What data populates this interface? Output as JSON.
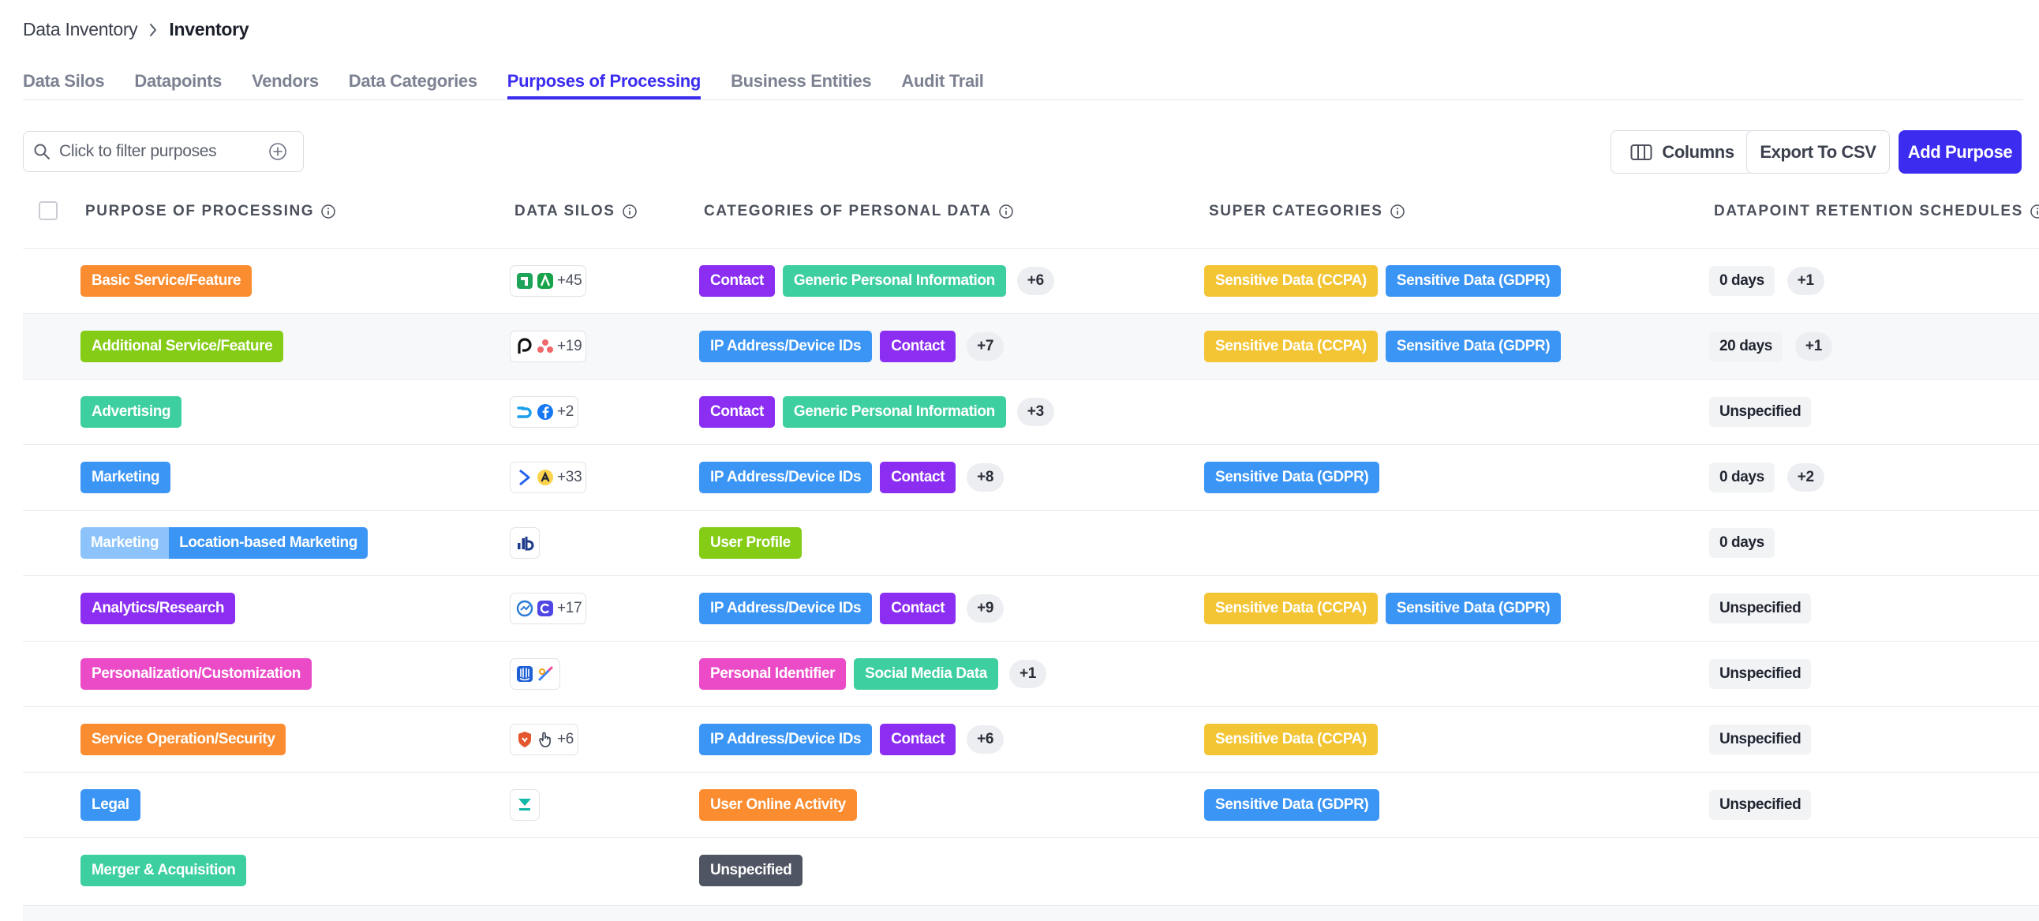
{
  "breadcrumb": {
    "parent": "Data Inventory",
    "current": "Inventory"
  },
  "tabs": [
    "Data Silos",
    "Datapoints",
    "Vendors",
    "Data Categories",
    "Purposes of Processing",
    "Business Entities",
    "Audit Trail"
  ],
  "active_tab": "Purposes of Processing",
  "filter": {
    "placeholder": "Click to filter purposes"
  },
  "toolbar": {
    "columns": "Columns",
    "export": "Export To CSV",
    "add": "Add Purpose"
  },
  "columns": {
    "purpose": "PURPOSE OF PROCESSING",
    "silos": "DATA SILOS",
    "categories": "CATEGORIES OF PERSONAL DATA",
    "super": "SUPER CATEGORIES",
    "retention": "DATAPOINT RETENTION SCHEDULES"
  },
  "colors": {
    "accent": "#3b2cf0",
    "orange": "#fb8c2f",
    "lime": "#84cc16",
    "teal": "#3ecfa0",
    "blue": "#3b95f5",
    "light_blue": "#8cc3fb",
    "purple": "#8b2ef2",
    "pink": "#ec4bc8",
    "yellow": "#f3c534",
    "gray": "#4f5562"
  },
  "rows": [
    {
      "purpose": [
        "Basic Service/Feature"
      ],
      "silo_icons": [
        "app-logo-green-square-icon",
        "app-logo-green-a-icon"
      ],
      "silos_more": "+45",
      "categories": [
        "Contact",
        "Generic Personal Information"
      ],
      "categories_more": "+6",
      "super": [
        "Sensitive Data (CCPA)",
        "Sensitive Data (GDPR)"
      ],
      "retention": "0 days",
      "retention_more": "+1"
    },
    {
      "purpose": [
        "Additional Service/Feature"
      ],
      "silo_icons": [
        "app-logo-black-p-icon",
        "asana-logo-icon"
      ],
      "silos_more": "+19",
      "categories": [
        "IP Address/Device IDs",
        "Contact"
      ],
      "categories_more": "+7",
      "super": [
        "Sensitive Data (CCPA)",
        "Sensitive Data (GDPR)"
      ],
      "retention": "20 days",
      "retention_more": "+1"
    },
    {
      "purpose": [
        "Advertising"
      ],
      "silo_icons": [
        "app-logo-blue-wave-icon",
        "facebook-logo-icon"
      ],
      "silos_more": "+2",
      "categories": [
        "Contact",
        "Generic Personal Information"
      ],
      "categories_more": "+3",
      "super": [],
      "retention": "Unspecified",
      "retention_more": ""
    },
    {
      "purpose": [
        "Marketing"
      ],
      "silo_icons": [
        "app-logo-blue-arrow-icon",
        "app-logo-yellow-a-icon"
      ],
      "silos_more": "+33",
      "categories": [
        "IP Address/Device IDs",
        "Contact"
      ],
      "categories_more": "+8",
      "super": [
        "Sensitive Data (GDPR)"
      ],
      "retention": "0 days",
      "retention_more": "+2"
    },
    {
      "purpose": [
        "Marketing",
        "Location-based Marketing"
      ],
      "silo_icons": [
        "app-logo-bar-chart-icon"
      ],
      "silos_more": "",
      "categories": [
        "User Profile"
      ],
      "categories_more": "",
      "super": [],
      "retention": "0 days",
      "retention_more": ""
    },
    {
      "purpose": [
        "Analytics/Research"
      ],
      "silo_icons": [
        "app-logo-blue-circle-icon",
        "app-logo-blue-c-icon"
      ],
      "silos_more": "+17",
      "categories": [
        "IP Address/Device IDs",
        "Contact"
      ],
      "categories_more": "+9",
      "super": [
        "Sensitive Data (CCPA)",
        "Sensitive Data (GDPR)"
      ],
      "retention": "Unspecified",
      "retention_more": ""
    },
    {
      "purpose": [
        "Personalization/Customization"
      ],
      "silo_icons": [
        "intercom-logo-icon",
        "app-logo-pen-icon"
      ],
      "silos_more": "",
      "categories": [
        "Personal Identifier",
        "Social Media Data"
      ],
      "categories_more": "+1",
      "super": [],
      "retention": "Unspecified",
      "retention_more": ""
    },
    {
      "purpose": [
        "Service Operation/Security"
      ],
      "silo_icons": [
        "app-logo-red-shield-icon",
        "app-logo-hand-icon"
      ],
      "silos_more": "+6",
      "categories": [
        "IP Address/Device IDs",
        "Contact"
      ],
      "categories_more": "+6",
      "super": [
        "Sensitive Data (CCPA)"
      ],
      "retention": "Unspecified",
      "retention_more": ""
    },
    {
      "purpose": [
        "Legal"
      ],
      "silo_icons": [
        "app-logo-teal-v-icon"
      ],
      "silos_more": "",
      "categories": [
        "User Online Activity"
      ],
      "categories_more": "",
      "super": [
        "Sensitive Data (GDPR)"
      ],
      "retention": "Unspecified",
      "retention_more": ""
    },
    {
      "purpose": [
        "Merger & Acquisition"
      ],
      "silo_icons": [],
      "silos_more": "",
      "categories": [
        "Unspecified"
      ],
      "categories_more": "",
      "super": [],
      "retention": "",
      "retention_more": ""
    }
  ]
}
